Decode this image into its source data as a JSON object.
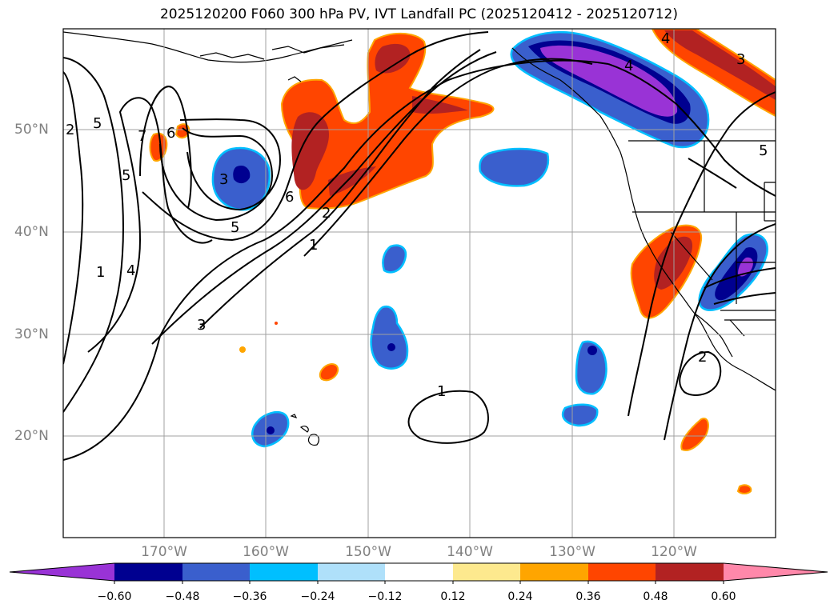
{
  "title": "2025120200 F060 300 hPa PV, IVT Landfall PC (2025120412 - 2025120712)",
  "lat_labels": [
    "50°N",
    "40°N",
    "30°N",
    "20°N"
  ],
  "lon_labels": [
    "170°W",
    "160°W",
    "150°W",
    "140°W",
    "130°W",
    "120°W"
  ],
  "contour_labels": [
    "5",
    "6",
    "7",
    "5",
    "3",
    "5",
    "4",
    "1",
    "3",
    "2",
    "1",
    "6",
    "4",
    "3",
    "5",
    "1",
    "2",
    "2",
    "4"
  ],
  "colorbar": {
    "ticks": [
      "−0.60",
      "−0.48",
      "−0.36",
      "−0.24",
      "−0.12",
      "0.12",
      "0.24",
      "0.36",
      "0.48",
      "0.60"
    ],
    "colors": [
      "#9933d6",
      "#000090",
      "#3a5fcd",
      "#00bfff",
      "#afe0fa",
      "#ffffff",
      "#fde98e",
      "#ffa500",
      "#ff4500",
      "#b22222",
      "#ff88aa"
    ]
  },
  "colors": {
    "land_outline": "#000000",
    "grid": "#a0a0a0",
    "pos_shade_outer": "#ffa500",
    "pos_shade": "#ff4500",
    "pos_shade_inner": "#b22222",
    "neg_shade_outer": "#00bfff",
    "neg_shade": "#3a5fcd",
    "neg_shade_inner": "#000090",
    "neg_shade_extreme": "#9933d6"
  }
}
